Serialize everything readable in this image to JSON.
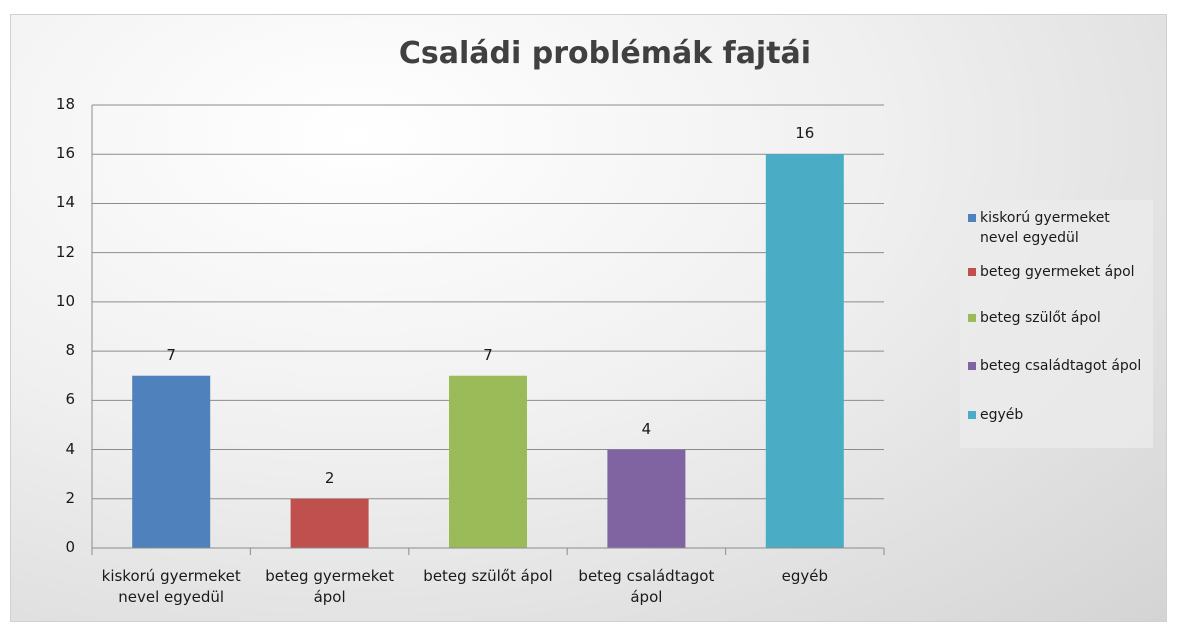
{
  "chart_data": {
    "type": "bar",
    "title": "Családi problémák fajtái",
    "categories": [
      "kiskorú gyermeket nevel egyedül",
      "beteg gyermeket ápol",
      "beteg szülőt ápol",
      "beteg családtagot ápol",
      "egyéb"
    ],
    "values": [
      7,
      2,
      7,
      4,
      16
    ],
    "colors": [
      "#4f81bd",
      "#c0504d",
      "#9bbb59",
      "#8064a2",
      "#4bacc6"
    ],
    "ylim": [
      0,
      18
    ],
    "yticks": [
      0,
      2,
      4,
      6,
      8,
      10,
      12,
      14,
      16,
      18
    ],
    "grid": true,
    "legend": "right"
  }
}
